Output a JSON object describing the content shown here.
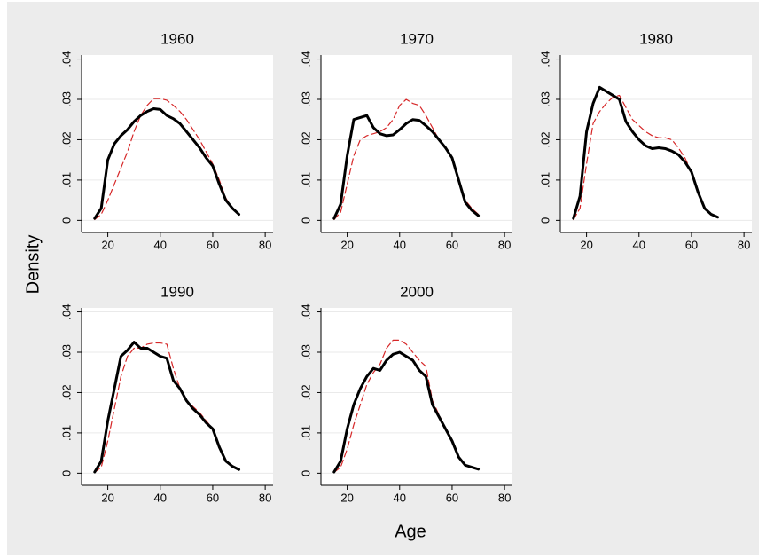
{
  "ylabel": "Density",
  "xlabel": "Age",
  "chart_data": [
    {
      "type": "line",
      "title": "1960",
      "x": [
        15,
        17.5,
        20,
        22.5,
        25,
        27.5,
        30,
        32.5,
        35,
        37.5,
        40,
        42.5,
        45,
        47.5,
        50,
        52.5,
        55,
        57.5,
        60,
        62.5,
        65,
        67.5,
        70
      ],
      "series": [
        {
          "color": "#000000",
          "width": 3,
          "dash": false,
          "values": [
            0.0005,
            0.003,
            0.015,
            0.019,
            0.021,
            0.0225,
            0.0245,
            0.026,
            0.027,
            0.0277,
            0.0275,
            0.026,
            0.0252,
            0.024,
            0.022,
            0.02,
            0.018,
            0.0155,
            0.0135,
            0.009,
            0.005,
            0.003,
            0.0015
          ]
        },
        {
          "color": "#d62728",
          "width": 1.2,
          "dash": true,
          "values": [
            0.0002,
            0.0015,
            0.005,
            0.009,
            0.013,
            0.017,
            0.022,
            0.026,
            0.0285,
            0.0302,
            0.0302,
            0.0298,
            0.0285,
            0.027,
            0.025,
            0.0225,
            0.02,
            0.017,
            0.014,
            0.01,
            0.0055,
            0.003,
            0.0015
          ]
        }
      ],
      "xlim": [
        10,
        83
      ],
      "ylim": [
        -0.003,
        0.041
      ],
      "xticks": [
        20,
        40,
        60,
        80
      ],
      "yticks": [
        0,
        {
          "value": 0.01,
          "label": ".01"
        },
        {
          "value": 0.02,
          "label": ".02"
        },
        {
          "value": 0.03,
          "label": ".03"
        },
        {
          "value": 0.04,
          "label": ".04"
        }
      ],
      "grid": true
    },
    {
      "type": "line",
      "title": "1970",
      "x": [
        15,
        17.5,
        20,
        22.5,
        25,
        27.5,
        30,
        32.5,
        35,
        37.5,
        40,
        42.5,
        45,
        47.5,
        50,
        52.5,
        55,
        57.5,
        60,
        62.5,
        65,
        67.5,
        70
      ],
      "series": [
        {
          "color": "#000000",
          "width": 3,
          "dash": false,
          "values": [
            0.0005,
            0.004,
            0.016,
            0.025,
            0.0255,
            0.026,
            0.023,
            0.0215,
            0.021,
            0.0212,
            0.0225,
            0.024,
            0.025,
            0.0248,
            0.0235,
            0.022,
            0.02,
            0.018,
            0.0155,
            0.01,
            0.0045,
            0.0025,
            0.0012
          ]
        },
        {
          "color": "#d62728",
          "width": 1.2,
          "dash": true,
          "values": [
            0.0002,
            0.002,
            0.009,
            0.016,
            0.02,
            0.021,
            0.0215,
            0.022,
            0.023,
            0.025,
            0.0285,
            0.03,
            0.029,
            0.0285,
            0.026,
            0.023,
            0.02,
            0.018,
            0.0155,
            0.01,
            0.005,
            0.003,
            0.0015
          ]
        }
      ],
      "xlim": [
        10,
        83
      ],
      "ylim": [
        -0.003,
        0.041
      ],
      "xticks": [
        20,
        40,
        60,
        80
      ],
      "yticks": [
        0,
        {
          "value": 0.01,
          "label": ".01"
        },
        {
          "value": 0.02,
          "label": ".02"
        },
        {
          "value": 0.03,
          "label": ".03"
        },
        {
          "value": 0.04,
          "label": ".04"
        }
      ],
      "grid": true
    },
    {
      "type": "line",
      "title": "1980",
      "x": [
        15,
        17.5,
        20,
        22.5,
        25,
        27.5,
        30,
        32.5,
        35,
        37.5,
        40,
        42.5,
        45,
        47.5,
        50,
        52.5,
        55,
        57.5,
        60,
        62.5,
        65,
        67.5,
        70
      ],
      "series": [
        {
          "color": "#000000",
          "width": 3,
          "dash": false,
          "values": [
            0.0005,
            0.006,
            0.022,
            0.029,
            0.033,
            0.032,
            0.031,
            0.03,
            0.0245,
            0.022,
            0.02,
            0.0185,
            0.0178,
            0.018,
            0.0178,
            0.0172,
            0.0163,
            0.0145,
            0.012,
            0.007,
            0.003,
            0.0015,
            0.0008
          ]
        },
        {
          "color": "#d62728",
          "width": 1.2,
          "dash": true,
          "values": [
            0.0002,
            0.003,
            0.014,
            0.024,
            0.027,
            0.029,
            0.0305,
            0.031,
            0.028,
            0.025,
            0.0235,
            0.022,
            0.021,
            0.0205,
            0.0205,
            0.02,
            0.018,
            0.0155,
            0.012,
            0.007,
            0.003,
            0.0015,
            0.0008
          ]
        }
      ],
      "xlim": [
        10,
        83
      ],
      "ylim": [
        -0.003,
        0.041
      ],
      "xticks": [
        20,
        40,
        60,
        80
      ],
      "yticks": [
        0,
        {
          "value": 0.01,
          "label": ".01"
        },
        {
          "value": 0.02,
          "label": ".02"
        },
        {
          "value": 0.03,
          "label": ".03"
        },
        {
          "value": 0.04,
          "label": ".04"
        }
      ],
      "grid": true
    },
    {
      "type": "line",
      "title": "1990",
      "x": [
        15,
        17.5,
        20,
        22.5,
        25,
        27.5,
        30,
        32.5,
        35,
        37.5,
        40,
        42.5,
        45,
        47.5,
        50,
        52.5,
        55,
        57.5,
        60,
        62.5,
        65,
        67.5,
        70
      ],
      "series": [
        {
          "color": "#000000",
          "width": 3,
          "dash": false,
          "values": [
            0.0003,
            0.003,
            0.013,
            0.021,
            0.029,
            0.0305,
            0.0325,
            0.031,
            0.031,
            0.03,
            0.029,
            0.0285,
            0.023,
            0.021,
            0.018,
            0.016,
            0.0145,
            0.0125,
            0.011,
            0.0065,
            0.003,
            0.0017,
            0.0009
          ]
        },
        {
          "color": "#d62728",
          "width": 1.2,
          "dash": true,
          "values": [
            0.0002,
            0.0015,
            0.008,
            0.016,
            0.024,
            0.029,
            0.031,
            0.031,
            0.032,
            0.0323,
            0.0323,
            0.032,
            0.026,
            0.021,
            0.018,
            0.0165,
            0.015,
            0.013,
            0.011,
            0.0065,
            0.003,
            0.0017,
            0.0009
          ]
        }
      ],
      "xlim": [
        10,
        83
      ],
      "ylim": [
        -0.003,
        0.041
      ],
      "xticks": [
        20,
        40,
        60,
        80
      ],
      "yticks": [
        0,
        {
          "value": 0.01,
          "label": ".01"
        },
        {
          "value": 0.02,
          "label": ".02"
        },
        {
          "value": 0.03,
          "label": ".03"
        },
        {
          "value": 0.04,
          "label": ".04"
        }
      ],
      "grid": true
    },
    {
      "type": "line",
      "title": "2000",
      "x": [
        15,
        17.5,
        20,
        22.5,
        25,
        27.5,
        30,
        32.5,
        35,
        37.5,
        40,
        42.5,
        45,
        47.5,
        50,
        52.5,
        55,
        57.5,
        60,
        62.5,
        65,
        67.5,
        70
      ],
      "series": [
        {
          "color": "#000000",
          "width": 3,
          "dash": false,
          "values": [
            0.0003,
            0.003,
            0.011,
            0.017,
            0.021,
            0.024,
            0.026,
            0.0255,
            0.028,
            0.0295,
            0.03,
            0.029,
            0.028,
            0.0255,
            0.024,
            0.017,
            0.014,
            0.011,
            0.008,
            0.004,
            0.002,
            0.0015,
            0.001
          ]
        },
        {
          "color": "#d62728",
          "width": 1.2,
          "dash": true,
          "values": [
            0.0002,
            0.0015,
            0.006,
            0.012,
            0.017,
            0.022,
            0.025,
            0.027,
            0.031,
            0.033,
            0.033,
            0.032,
            0.03,
            0.028,
            0.0265,
            0.018,
            0.0145,
            0.011,
            0.008,
            0.004,
            0.002,
            0.0015,
            0.001
          ]
        }
      ],
      "xlim": [
        10,
        83
      ],
      "ylim": [
        -0.003,
        0.041
      ],
      "xticks": [
        20,
        40,
        60,
        80
      ],
      "yticks": [
        0,
        {
          "value": 0.01,
          "label": ".01"
        },
        {
          "value": 0.02,
          "label": ".02"
        },
        {
          "value": 0.03,
          "label": ".03"
        },
        {
          "value": 0.04,
          "label": ".04"
        }
      ],
      "grid": true
    }
  ]
}
